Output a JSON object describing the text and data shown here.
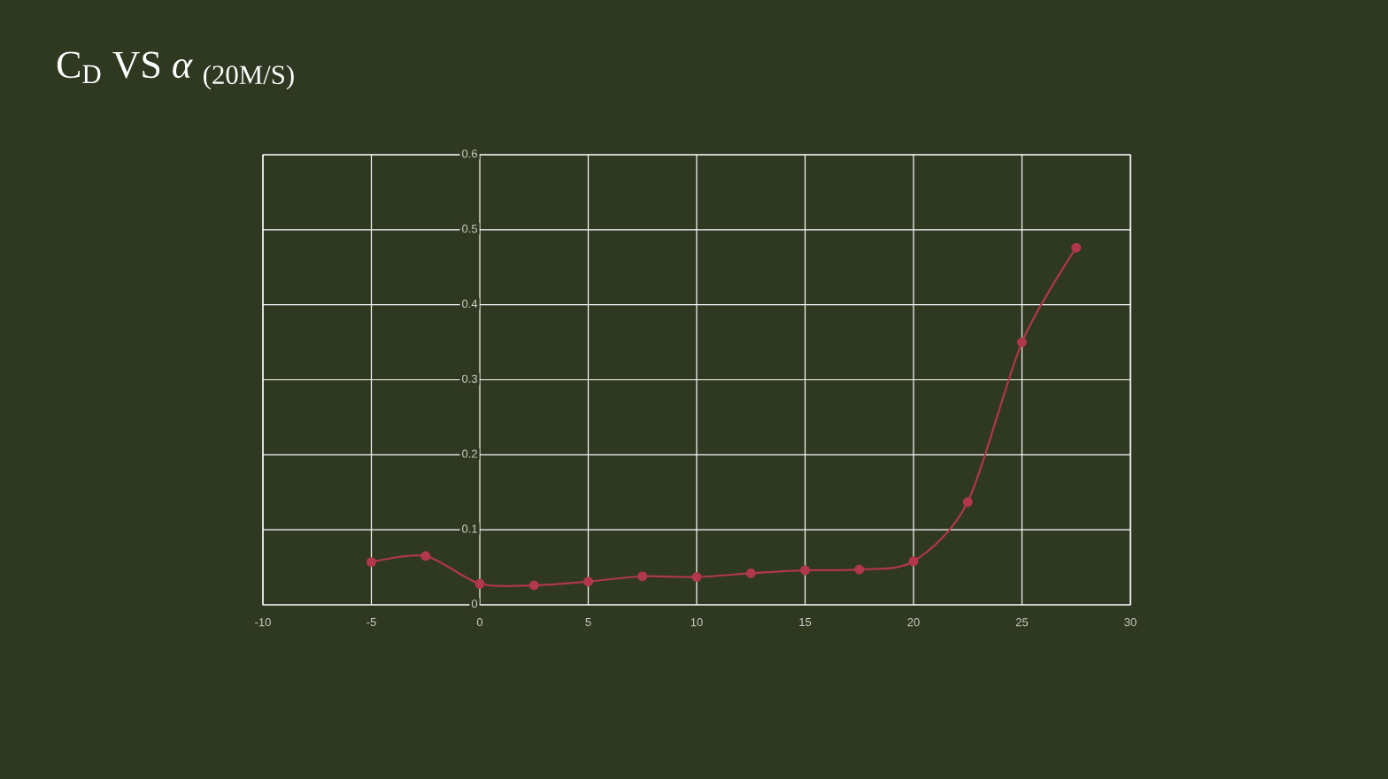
{
  "chart_data": {
    "type": "line",
    "title": "C$_{D}$ VS *α* $_{(20M/S)}$",
    "x": [
      -5,
      -2.5,
      0,
      2.5,
      5,
      7.5,
      10,
      12.5,
      15,
      17.5,
      20,
      22.5,
      25,
      27.5
    ],
    "series": [
      {
        "color": "#b0384a",
        "values": [
          0.057,
          0.065,
          0.028,
          0.026,
          0.031,
          0.038,
          0.037,
          0.042,
          0.046,
          0.047,
          0.058,
          0.137,
          0.35,
          0.476
        ]
      }
    ],
    "xlim": [
      -10,
      30
    ],
    "ylim": [
      0,
      0.6
    ],
    "xticks": [
      -10,
      -5,
      0,
      5,
      10,
      15,
      20,
      25,
      30
    ],
    "yticks": [
      0,
      0.1,
      0.2,
      0.3,
      0.4,
      0.5,
      0.6
    ],
    "grid": true,
    "marker": "circle",
    "line_style": "solid"
  }
}
